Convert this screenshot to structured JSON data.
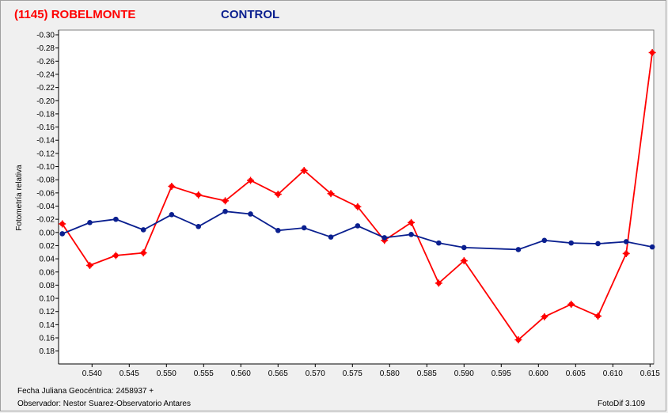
{
  "titles": {
    "target": "(1145) ROBELMONTE",
    "control": "CONTROL"
  },
  "footer": {
    "date": "Fecha Juliana Geocéntrica: 2458937 +",
    "observer": "Observador: Nestor Suarez-Observatorio Antares",
    "version": "FotoDif 3.109"
  },
  "colors": {
    "target": "#ff0000",
    "control": "#0a1f8f",
    "plot_bg": "#ffffff",
    "axis": "#000000"
  },
  "chart_data": {
    "type": "line",
    "title": "",
    "xlabel": "",
    "ylabel": "Fotometría relativa",
    "xlim": [
      0.5355,
      0.6155
    ],
    "ylim": [
      -0.3,
      0.19
    ],
    "y_inverted": true,
    "grid": false,
    "x_ticks": [
      "0.540",
      "0.545",
      "0.550",
      "0.555",
      "0.560",
      "0.565",
      "0.570",
      "0.575",
      "0.580",
      "0.585",
      "0.590",
      "0.595",
      "0.600",
      "0.605",
      "0.610",
      "0.615"
    ],
    "y_ticks": [
      "-0.30",
      "-0.28",
      "-0.26",
      "-0.24",
      "-0.22",
      "-0.20",
      "-0.18",
      "-0.16",
      "-0.14",
      "-0.12",
      "-0.10",
      "-0.08",
      "-0.06",
      "-0.04",
      "-0.02",
      "0.00",
      "0.02",
      "0.04",
      "0.06",
      "0.08",
      "0.10",
      "0.12",
      "0.14",
      "0.16",
      "0.18"
    ],
    "series": [
      {
        "name": "(1145) ROBELMONTE",
        "color": "#ff0000",
        "x": [
          0.536,
          0.5397,
          0.5432,
          0.5469,
          0.5507,
          0.5543,
          0.5579,
          0.5613,
          0.565,
          0.5685,
          0.5721,
          0.5757,
          0.5793,
          0.5829,
          0.5866,
          0.59,
          0.5973,
          0.6008,
          0.6044,
          0.608,
          0.6118,
          0.6153
        ],
        "y": [
          -0.013,
          0.05,
          0.035,
          0.031,
          -0.07,
          -0.057,
          -0.048,
          -0.079,
          -0.058,
          -0.094,
          -0.059,
          -0.039,
          0.012,
          -0.015,
          0.077,
          0.043,
          0.163,
          0.128,
          0.109,
          0.127,
          0.032,
          -0.273
        ]
      },
      {
        "name": "CONTROL",
        "color": "#0a1f8f",
        "x": [
          0.536,
          0.5397,
          0.5432,
          0.5469,
          0.5507,
          0.5543,
          0.5579,
          0.5613,
          0.565,
          0.5685,
          0.5721,
          0.5757,
          0.5793,
          0.5829,
          0.5866,
          0.59,
          0.5973,
          0.6008,
          0.6044,
          0.608,
          0.6118,
          0.6153
        ],
        "y": [
          0.002,
          -0.015,
          -0.02,
          -0.004,
          -0.027,
          -0.009,
          -0.032,
          -0.028,
          -0.003,
          -0.007,
          0.007,
          -0.01,
          0.008,
          0.003,
          0.016,
          0.023,
          0.026,
          0.012,
          0.016,
          0.017,
          0.014,
          0.022
        ]
      }
    ]
  }
}
